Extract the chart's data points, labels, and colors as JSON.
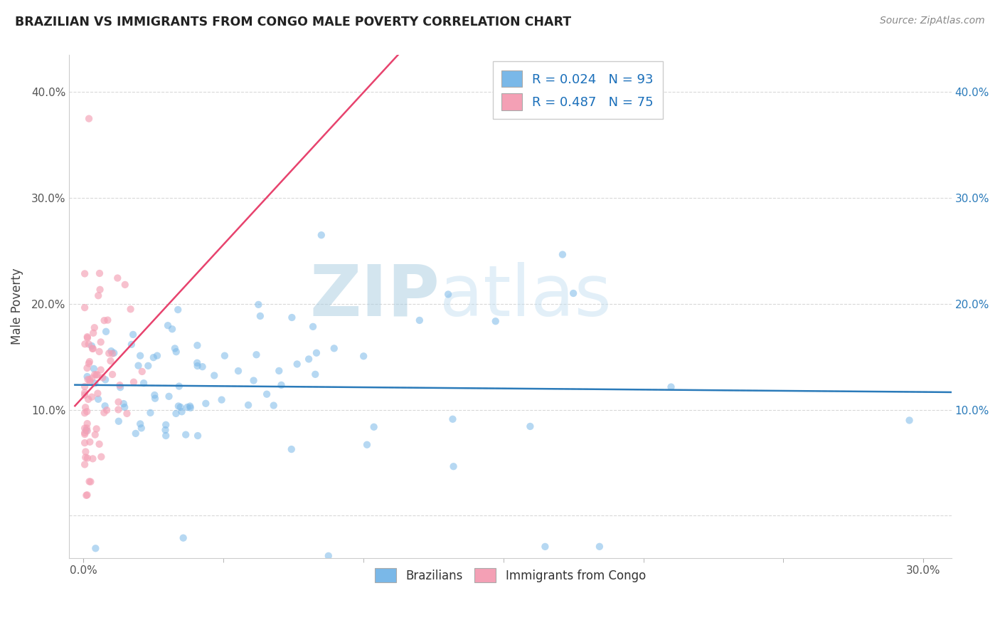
{
  "title": "BRAZILIAN VS IMMIGRANTS FROM CONGO MALE POVERTY CORRELATION CHART",
  "source": "Source: ZipAtlas.com",
  "ylabel": "Male Poverty",
  "x_tick_positions": [
    0.0,
    0.3
  ],
  "x_tick_labels": [
    "0.0%",
    "30.0%"
  ],
  "y_ticks": [
    0.0,
    0.1,
    0.2,
    0.3,
    0.4
  ],
  "y_tick_labels_left": [
    "",
    "10.0%",
    "20.0%",
    "30.0%",
    "40.0%"
  ],
  "y_tick_labels_right": [
    "",
    "10.0%",
    "20.0%",
    "30.0%",
    "40.0%"
  ],
  "xlim": [
    -0.005,
    0.31
  ],
  "ylim": [
    -0.04,
    0.435
  ],
  "legend_R1": "R = 0.024",
  "legend_N1": "N = 93",
  "legend_R2": "R = 0.487",
  "legend_N2": "N = 75",
  "blue_color": "#7ab8e8",
  "pink_color": "#f4a0b5",
  "blue_line_color": "#2b7bba",
  "pink_line_color": "#e8436e",
  "dash_color": "#c8c8c8",
  "grid_color": "#d0d0d0",
  "title_color": "#222222",
  "source_color": "#888888",
  "watermark_ZIP_color": "#b8d4ea",
  "watermark_atlas_color": "#c8dff0",
  "right_tick_color": "#2b7bba"
}
